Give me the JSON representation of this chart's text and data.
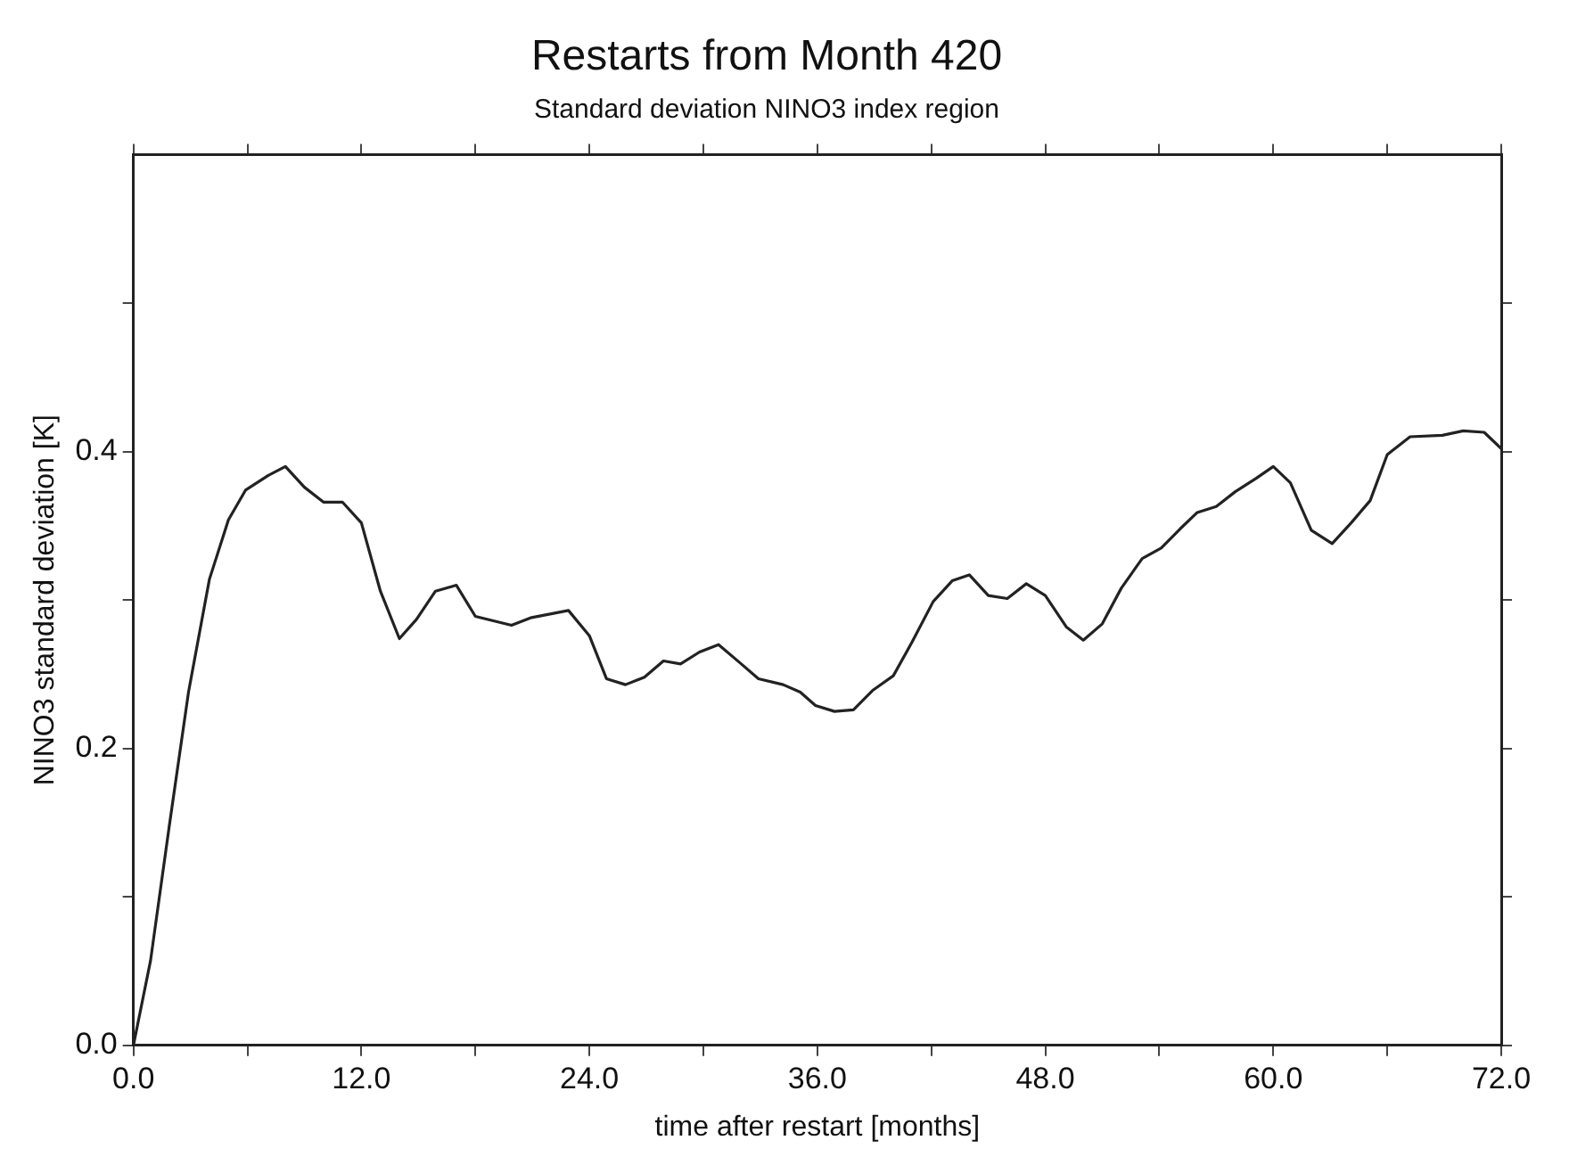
{
  "chart_data": {
    "type": "line",
    "title": "Restarts from Month 420",
    "subtitle": "Standard deviation NINO3 index region",
    "xlabel": "time after restart [months]",
    "ylabel": "NINO3 standard deviation [K]",
    "x": [
      0,
      0.9,
      1.9,
      2.9,
      4.0,
      5.0,
      5.9,
      7.1,
      8.0,
      9.0,
      10.0,
      11.0,
      12.0,
      13.0,
      14.0,
      14.9,
      15.9,
      17.0,
      18.0,
      19.9,
      20.9,
      22.9,
      24.0,
      24.9,
      25.9,
      26.9,
      27.9,
      28.8,
      29.8,
      30.8,
      31.9,
      32.9,
      34.2,
      35.1,
      35.9,
      36.9,
      37.9,
      38.9,
      40.0,
      41.0,
      42.1,
      43.1,
      44.0,
      45.0,
      46.0,
      47.0,
      48.0,
      49.1,
      50.0,
      51.0,
      52.0,
      53.1,
      54.1,
      55.1,
      56.0,
      57.0,
      58.0,
      59.1,
      60.0,
      60.9,
      62.0,
      63.1,
      64.1,
      65.1,
      66.0,
      67.2,
      68.9,
      70.0,
      71.1,
      72.0
    ],
    "series": [
      {
        "color": "#222222",
        "values": [
          0,
          0.057,
          0.149,
          0.238,
          0.314,
          0.354,
          0.374,
          0.384,
          0.39,
          0.376,
          0.366,
          0.366,
          0.352,
          0.306,
          0.274,
          0.287,
          0.306,
          0.31,
          0.289,
          0.283,
          0.288,
          0.293,
          0.276,
          0.247,
          0.243,
          0.248,
          0.259,
          0.257,
          0.265,
          0.27,
          0.258,
          0.247,
          0.243,
          0.238,
          0.229,
          0.225,
          0.226,
          0.239,
          0.249,
          0.272,
          0.299,
          0.313,
          0.317,
          0.303,
          0.301,
          0.311,
          0.303,
          0.282,
          0.273,
          0.284,
          0.308,
          0.328,
          0.335,
          0.348,
          0.359,
          0.363,
          0.373,
          0.382,
          0.39,
          0.379,
          0.347,
          0.338,
          0.352,
          0.367,
          0.398,
          0.41,
          0.411,
          0.414,
          0.413,
          0.402
        ]
      }
    ],
    "xlim": [
      0,
      72
    ],
    "ylim": [
      0,
      0.6
    ],
    "xticks": [
      {
        "value": 0,
        "label": "0.0"
      },
      {
        "value": 6,
        "label": null
      },
      {
        "value": 12,
        "label": "12.0"
      },
      {
        "value": 18,
        "label": null
      },
      {
        "value": 24,
        "label": "24.0"
      },
      {
        "value": 30,
        "label": null
      },
      {
        "value": 36,
        "label": "36.0"
      },
      {
        "value": 42,
        "label": null
      },
      {
        "value": 48,
        "label": "48.0"
      },
      {
        "value": 54,
        "label": null
      },
      {
        "value": 60,
        "label": "60.0"
      },
      {
        "value": 66,
        "label": null
      },
      {
        "value": 72,
        "label": "72.0"
      }
    ],
    "yticks": [
      {
        "value": 0,
        "label": "0.0"
      },
      {
        "value": 0.1,
        "label": null
      },
      {
        "value": 0.2,
        "label": "0.2"
      },
      {
        "value": 0.3,
        "label": null
      },
      {
        "value": 0.4,
        "label": "0.4"
      },
      {
        "value": 0.5,
        "label": null
      }
    ],
    "grid": false,
    "legend": false,
    "marker": "none",
    "line_style": "solid"
  }
}
